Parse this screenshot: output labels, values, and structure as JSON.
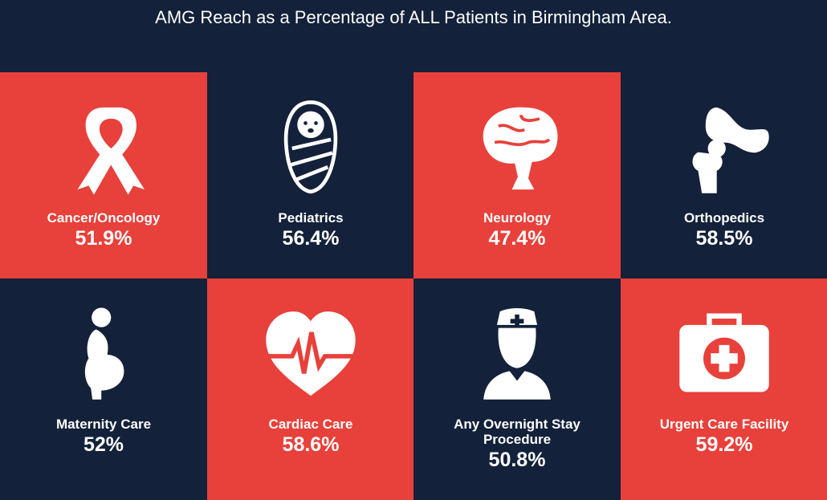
{
  "title": "AMG Reach as a Percentage of ALL Patients in Birmingham Area.",
  "tiles": [
    {
      "label": "Cancer/Oncology",
      "value": "51.9%"
    },
    {
      "label": "Pediatrics",
      "value": "56.4%"
    },
    {
      "label": "Neurology",
      "value": "47.4%"
    },
    {
      "label": "Orthopedics",
      "value": "58.5%"
    },
    {
      "label": "Maternity Care",
      "value": "52%"
    },
    {
      "label": "Cardiac Care",
      "value": "58.6%"
    },
    {
      "label": "Any Overnight Stay Procedure",
      "value": "50.8%"
    },
    {
      "label": "Urgent Care Facility",
      "value": "59.2%"
    }
  ]
}
